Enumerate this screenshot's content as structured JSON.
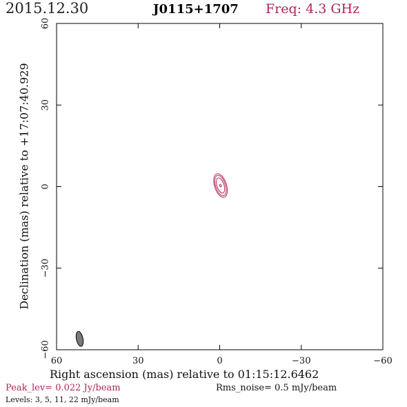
{
  "header": {
    "date": "2015.12.30",
    "source": "J0115+1707",
    "frequency": "Freq: 4.3 GHz"
  },
  "axes": {
    "x_label": "Right ascension (mas) relative to 01:15:12.6462",
    "y_label": "Declination (mas) relative to +17:07:40.929"
  },
  "footer": {
    "peak": "Peak_lev=  0.022 Jy/beam",
    "rms": "Rms_noise=  0.5 mJy/beam",
    "levels": "Levels:   3,   5,  11,  22 mJy/beam"
  },
  "colors": {
    "contour": "#b0235a",
    "beam_fill": "#7a7a7a",
    "frame": "#000000"
  },
  "chart_data": {
    "type": "contour",
    "xlim": [
      60,
      -60
    ],
    "ylim": [
      -60,
      60
    ],
    "x_ticks": [
      60,
      30,
      0,
      -30,
      -60
    ],
    "y_ticks": [
      60,
      30,
      0,
      -30,
      -60
    ],
    "x_tick_labels": [
      "60",
      "30",
      "0",
      "−30",
      "−60"
    ],
    "y_tick_labels": [
      "60",
      "30",
      "0",
      "−30",
      "−60"
    ],
    "contour_levels_mJy": [
      3,
      5,
      11,
      22
    ],
    "component": {
      "ra_mas": -0.3,
      "dec_mas": 0.4,
      "contours": [
        {
          "level": 3,
          "major_mas": 9.0,
          "minor_mas": 4.4,
          "pa_deg": -18
        },
        {
          "level": 5,
          "major_mas": 7.8,
          "minor_mas": 3.6,
          "pa_deg": -18
        },
        {
          "level": 11,
          "major_mas": 5.8,
          "minor_mas": 2.6,
          "pa_deg": -18
        },
        {
          "level": 22,
          "major_mas": 1.0,
          "minor_mas": 0.6,
          "pa_deg": -18
        }
      ]
    },
    "beam": {
      "ra_mas": 51.5,
      "dec_mas": -56.0,
      "major_mas": 5.6,
      "minor_mas": 2.4,
      "pa_deg": -12
    }
  }
}
